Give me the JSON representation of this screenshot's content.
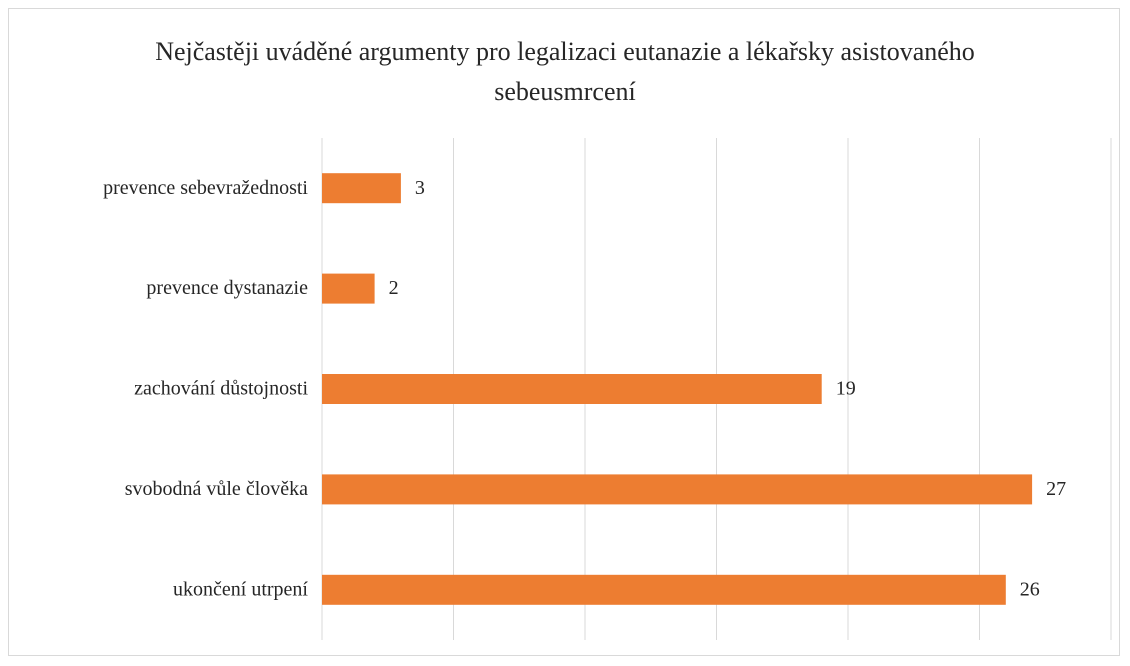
{
  "chart_data": {
    "type": "bar",
    "orientation": "horizontal",
    "title": "Nejčastěji uváděné argumenty pro legalizaci eutanazie a lékařsky asistovaného sebeusmrcení",
    "categories": [
      "prevence sebevražednosti",
      "prevence dystanazie",
      "zachování důstojnosti",
      "svobodná vůle člověka",
      "ukončení utrpení"
    ],
    "values": [
      3,
      2,
      19,
      27,
      26
    ],
    "color": "#ed7d31",
    "xlim": [
      0,
      30
    ],
    "xticks": [
      0,
      5,
      10,
      15,
      20,
      25,
      30
    ],
    "grid": true
  }
}
